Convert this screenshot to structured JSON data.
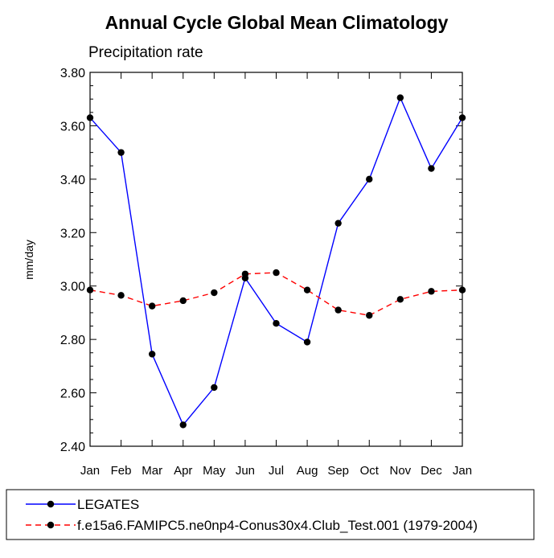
{
  "chart_data": {
    "type": "line",
    "title": "Annual Cycle Global Mean Climatology",
    "subtitle": "Precipitation rate",
    "xlabel": "",
    "ylabel": "mm/day",
    "categories": [
      "Jan",
      "Feb",
      "Mar",
      "Apr",
      "May",
      "Jun",
      "Jul",
      "Aug",
      "Sep",
      "Oct",
      "Nov",
      "Dec",
      "Jan"
    ],
    "ylim": [
      2.4,
      3.8
    ],
    "yticks": [
      "2.40",
      "2.60",
      "2.80",
      "3.00",
      "3.20",
      "3.40",
      "3.60",
      "3.80"
    ],
    "grid": false,
    "legend_position": "bottom",
    "series": [
      {
        "name": "LEGATES",
        "color": "#0000ff",
        "dash": "solid",
        "marker": "filled-circle",
        "values": [
          3.63,
          3.5,
          2.745,
          2.48,
          2.62,
          3.03,
          2.86,
          2.79,
          3.235,
          3.4,
          3.705,
          3.44,
          3.63
        ]
      },
      {
        "name": "f.e15a6.FAMIPC5.ne0np4-Conus30x4.Club_Test.001 (1979-2004)",
        "color": "#ff0000",
        "dash": "dashed",
        "marker": "filled-circle",
        "values": [
          2.985,
          2.965,
          2.925,
          2.945,
          2.975,
          3.045,
          3.05,
          2.985,
          2.91,
          2.89,
          2.95,
          2.98,
          2.985
        ]
      }
    ]
  }
}
